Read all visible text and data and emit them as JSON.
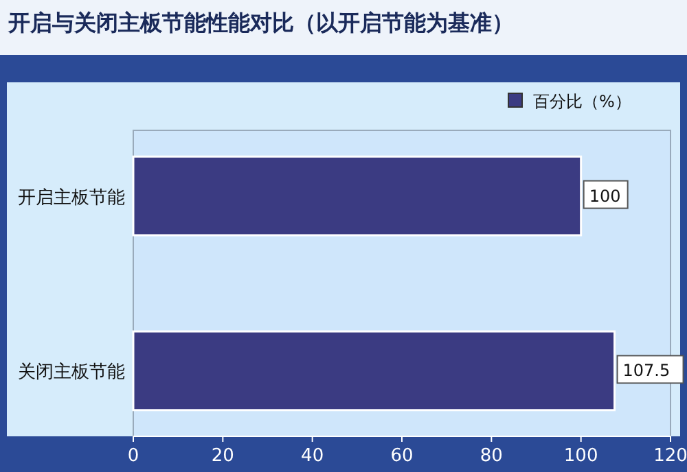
{
  "chart_data": {
    "type": "bar",
    "orientation": "horizontal",
    "title": "开启与关闭主板节能性能对比（以开启节能为基准）",
    "categories": [
      "开启主板节能",
      "关闭主板节能"
    ],
    "series": [
      {
        "name": "百分比（%）",
        "color": "#3b3b82",
        "values": [
          100,
          107.5
        ]
      }
    ],
    "xlim": [
      0,
      120
    ],
    "xticks": [
      0,
      20,
      40,
      60,
      80,
      100,
      120
    ],
    "data_labels": true,
    "legend": "top right",
    "grid": false
  }
}
